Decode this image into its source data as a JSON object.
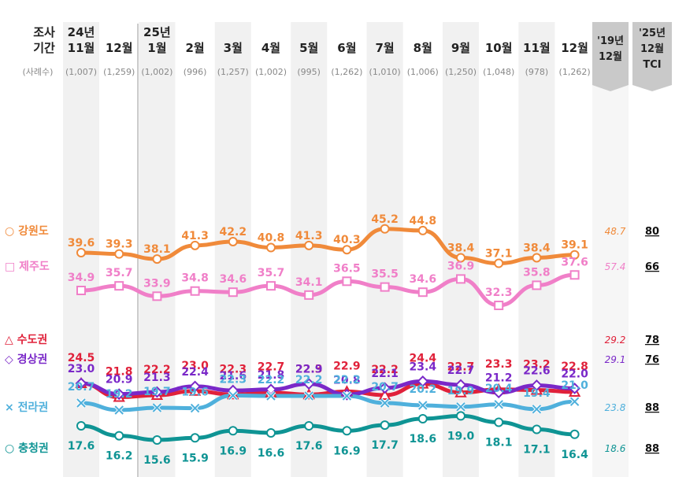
{
  "header": {
    "survey_label": [
      "조사",
      "기간"
    ],
    "sample_label": "(사례수)",
    "months": [
      {
        "top": "24년",
        "bottom": "11월",
        "n": "(1,007)"
      },
      {
        "top": "",
        "bottom": "12월",
        "n": "(1,259)"
      },
      {
        "top": "25년",
        "bottom": "1월",
        "n": "(1,002)"
      },
      {
        "top": "",
        "bottom": "2월",
        "n": "(996)"
      },
      {
        "top": "",
        "bottom": "3월",
        "n": "(1,257)"
      },
      {
        "top": "",
        "bottom": "4월",
        "n": "(1,002)"
      },
      {
        "top": "",
        "bottom": "5월",
        "n": "(995)"
      },
      {
        "top": "",
        "bottom": "6월",
        "n": "(1,262)"
      },
      {
        "top": "",
        "bottom": "7월",
        "n": "(1,010)"
      },
      {
        "top": "",
        "bottom": "8월",
        "n": "(1,006)"
      },
      {
        "top": "",
        "bottom": "9월",
        "n": "(1,250)"
      },
      {
        "top": "",
        "bottom": "10월",
        "n": "(1,048)"
      },
      {
        "top": "",
        "bottom": "11월",
        "n": "(978)"
      },
      {
        "top": "",
        "bottom": "12월",
        "n": "(1,262)"
      }
    ],
    "ref_col": [
      "'19년",
      "12월"
    ],
    "tci_col": [
      "'25년",
      "12월",
      "TCI"
    ]
  },
  "chart_data": {
    "type": "line",
    "categories": [
      "24년 11월",
      "12월",
      "25년 1월",
      "2월",
      "3월",
      "4월",
      "5월",
      "6월",
      "7월",
      "8월",
      "9월",
      "10월",
      "11월",
      "12월"
    ],
    "series": [
      {
        "name": "강원도",
        "marker": "○",
        "color": "#f08a3a",
        "values": [
          39.6,
          39.3,
          38.1,
          41.3,
          42.2,
          40.8,
          41.3,
          40.3,
          45.2,
          44.8,
          38.4,
          37.1,
          38.4,
          39.1
        ],
        "ref_2019": "48.7",
        "tci": "80"
      },
      {
        "name": "제주도",
        "marker": "□",
        "color": "#f07fc8",
        "values": [
          34.9,
          35.7,
          33.9,
          34.8,
          34.6,
          35.7,
          34.1,
          36.5,
          35.5,
          34.6,
          36.9,
          32.3,
          35.8,
          37.6
        ],
        "ref_2019": "57.4",
        "tci": "66"
      },
      {
        "name": "수도권",
        "marker": "△",
        "color": "#e0213a",
        "values": [
          24.5,
          21.8,
          22.2,
          23.0,
          22.3,
          22.7,
          22.3,
          22.9,
          22.2,
          24.4,
          22.7,
          23.3,
          23.2,
          22.8
        ],
        "ref_2019": "29.2",
        "tci": "78"
      },
      {
        "name": "경상권",
        "marker": "◇",
        "color": "#7a28c8",
        "values": [
          23.0,
          20.9,
          21.3,
          22.4,
          21.6,
          21.8,
          22.9,
          20.8,
          22.1,
          23.4,
          22.7,
          21.2,
          22.6,
          22.0
        ],
        "ref_2019": "29.1",
        "tci": "76"
      },
      {
        "name": "전라권",
        "marker": "×",
        "color": "#4fb0dc",
        "values": [
          20.7,
          19.2,
          19.7,
          19.6,
          22.3,
          22.2,
          22.2,
          22.2,
          20.7,
          20.2,
          19.9,
          20.4,
          19.4,
          21.0
        ],
        "ref_2019": "23.8",
        "tci": "88"
      },
      {
        "name": "충청권",
        "marker": "○",
        "color": "#0f9494",
        "values": [
          17.6,
          16.2,
          15.6,
          15.9,
          16.9,
          16.6,
          17.6,
          16.9,
          17.7,
          18.6,
          19.0,
          18.1,
          17.1,
          16.4
        ],
        "ref_2019": "18.6",
        "tci": "88"
      }
    ]
  }
}
